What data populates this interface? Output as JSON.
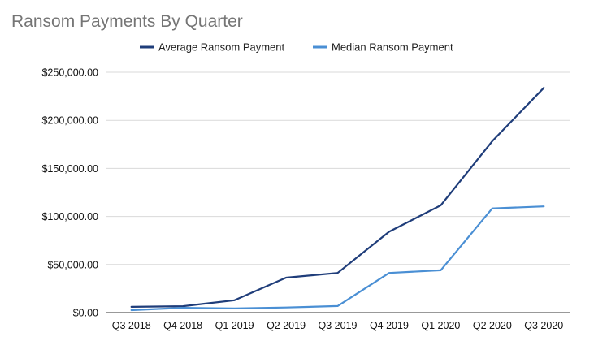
{
  "chart_data": {
    "type": "line",
    "title": "Ransom Payments By Quarter",
    "categories": [
      "Q3 2018",
      "Q4 2018",
      "Q1 2019",
      "Q2 2019",
      "Q3 2019",
      "Q4 2019",
      "Q1 2020",
      "Q2 2020",
      "Q3 2020"
    ],
    "series": [
      {
        "name": "Average Ransom Payment",
        "color": "#1f3d7a",
        "values": [
          6000,
          6700,
          12800,
          36300,
          41200,
          84100,
          111600,
          178300,
          233800
        ]
      },
      {
        "name": "Median Ransom Payment",
        "color": "#4a8fd4",
        "values": [
          2500,
          5000,
          4300,
          5300,
          6800,
          41200,
          44000,
          108400,
          110500
        ]
      }
    ],
    "ylim": [
      0,
      250000
    ],
    "yticks": [
      "$0.00",
      "$50,000.00",
      "$100,000.00",
      "$150,000.00",
      "$200,000.00",
      "$250,000.00"
    ],
    "ytick_values": [
      0,
      50000,
      100000,
      150000,
      200000,
      250000
    ],
    "xlabel": "",
    "ylabel": "",
    "grid": true,
    "legend_position": "top-center"
  }
}
